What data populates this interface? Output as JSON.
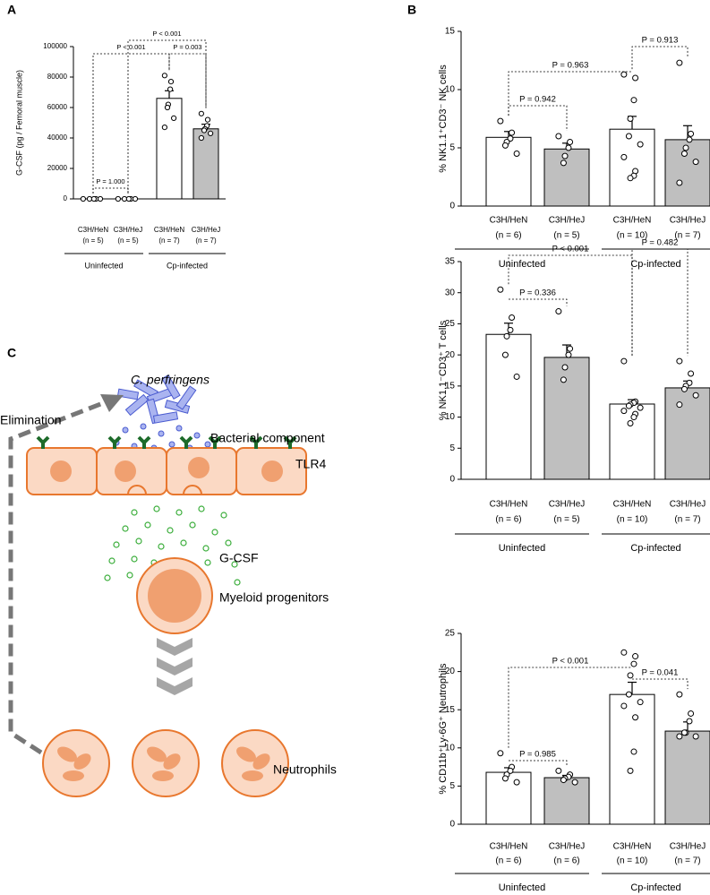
{
  "panel_labels": [
    "A",
    "B",
    "C"
  ],
  "diagram": {
    "labels": [
      "C. perfringens",
      "Elimination",
      "Bacterial component",
      "TLR4",
      "G-CSF",
      "Myeloid progenitors",
      "Neutrophils"
    ]
  },
  "chart_data": [
    {
      "type": "bar",
      "y_label": "G-CSF (pg / Femoral muscle)",
      "categories": [
        "C3H/HeN",
        "C3H/HeJ",
        "C3H/HeN",
        "C3H/HeJ"
      ],
      "category_sublabels": [
        "(n = 5)",
        "(n = 5)",
        "(n = 7)",
        "(n = 7)"
      ],
      "groups": [
        "Uninfected",
        "Cp-infected"
      ],
      "values": [
        0,
        0,
        66000,
        46000
      ],
      "errors": [
        0,
        0,
        5000,
        3000
      ],
      "colors": [
        "#ffffff",
        "#bfbfbf",
        "#ffffff",
        "#bfbfbf"
      ],
      "points": [
        [
          0,
          0,
          0,
          0,
          0
        ],
        [
          0,
          0,
          0,
          0,
          0
        ],
        [
          81000,
          77000,
          72000,
          62000,
          60000,
          53000,
          47000
        ],
        [
          56000,
          52000,
          48000,
          46000,
          45000,
          43000,
          40000
        ]
      ],
      "annotations": [
        "P < 0.001",
        "P < 0.001",
        "P = 0.003",
        "P = 1.000"
      ],
      "ylim": [
        0,
        100000
      ],
      "yticks": [
        0,
        20000,
        40000,
        60000,
        80000,
        100000
      ]
    },
    {
      "type": "bar",
      "y_label": "% NK1.1⁺CD3⁻ NK cells",
      "categories": [
        "C3H/HeN",
        "C3H/HeJ",
        "C3H/HeN",
        "C3H/HeJ"
      ],
      "category_sublabels": [
        "(n = 6)",
        "(n = 5)",
        "(n = 10)",
        "(n = 7)"
      ],
      "groups": [
        "Uninfected",
        "Cp-infected"
      ],
      "values": [
        5.9,
        4.9,
        6.6,
        5.7
      ],
      "errors": [
        0.5,
        0.5,
        1.1,
        1.2
      ],
      "colors": [
        "#ffffff",
        "#bfbfbf",
        "#ffffff",
        "#bfbfbf"
      ],
      "points": [
        [
          7.3,
          6.3,
          5.8,
          5.5,
          5.2,
          4.5
        ],
        [
          6.0,
          5.5,
          5.0,
          4.3,
          3.7
        ],
        [
          11.3,
          11.0,
          9.1,
          7.5,
          6.0,
          5.3,
          4.2,
          3.0,
          2.6,
          2.4
        ],
        [
          12.3,
          6.2,
          5.7,
          5.0,
          4.5,
          3.8,
          2.0
        ]
      ],
      "annotations": [
        "P = 0.942",
        "P = 0.963",
        "P = 0.913"
      ],
      "ylim": [
        0,
        15
      ],
      "yticks": [
        0,
        5,
        10,
        15
      ]
    },
    {
      "type": "bar",
      "y_label": "% NK1.1⁻CD3⁺ T cells",
      "categories": [
        "C3H/HeN",
        "C3H/HeJ",
        "C3H/HeN",
        "C3H/HeJ"
      ],
      "category_sublabels": [
        "(n = 6)",
        "(n = 5)",
        "(n = 10)",
        "(n = 7)"
      ],
      "groups": [
        "Uninfected",
        "Cp-infected"
      ],
      "values": [
        23.3,
        19.6,
        12.1,
        14.7
      ],
      "errors": [
        1.8,
        2.0,
        0.7,
        1.1
      ],
      "colors": [
        "#ffffff",
        "#bfbfbf",
        "#ffffff",
        "#bfbfbf"
      ],
      "points": [
        [
          30.5,
          26,
          24,
          23,
          20,
          16.5
        ],
        [
          27,
          21,
          20,
          18,
          16
        ],
        [
          19,
          12.5,
          12.3,
          12,
          11.8,
          11.5,
          11,
          10.5,
          10,
          9
        ],
        [
          19,
          17,
          15.5,
          15,
          14.5,
          13.5,
          12
        ]
      ],
      "annotations": [
        "P = 0.336",
        "P < 0.001",
        "P = 0.482"
      ],
      "ylim": [
        0,
        35
      ],
      "yticks": [
        0,
        5,
        10,
        15,
        20,
        25,
        30,
        35
      ]
    },
    {
      "type": "bar",
      "y_label": "% CD11b⁺Ly-6G⁺ Neutrophils",
      "categories": [
        "C3H/HeN",
        "C3H/HeJ",
        "C3H/HeN",
        "C3H/HeJ"
      ],
      "category_sublabels": [
        "(n = 6)",
        "(n = 6)",
        "(n = 10)",
        "(n = 7)"
      ],
      "groups": [
        "Uninfected",
        "Cp-infected"
      ],
      "values": [
        6.8,
        6.1,
        17.0,
        12.2
      ],
      "errors": [
        0.6,
        0.3,
        1.6,
        1.2
      ],
      "colors": [
        "#ffffff",
        "#bfbfbf",
        "#ffffff",
        "#bfbfbf"
      ],
      "points": [
        [
          9.3,
          7.5,
          7,
          6.5,
          6,
          5.5
        ],
        [
          7,
          6.5,
          6.2,
          6,
          5.8,
          5.5
        ],
        [
          22.5,
          22,
          21,
          19.5,
          17,
          16,
          15.5,
          14,
          9.5,
          7
        ],
        [
          17,
          14.5,
          13.5,
          12,
          12,
          11.5,
          11.5
        ]
      ],
      "annotations": [
        "P = 0.985",
        "P < 0.001",
        "P = 0.041"
      ],
      "ylim": [
        0,
        25
      ],
      "yticks": [
        0,
        5,
        10,
        15,
        20,
        25
      ]
    }
  ]
}
